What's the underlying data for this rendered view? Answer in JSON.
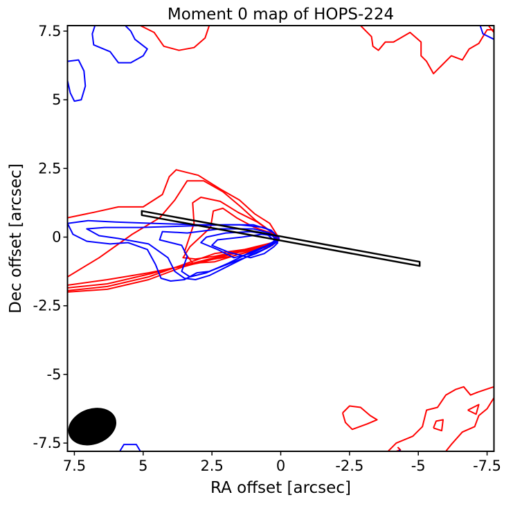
{
  "chart_data": {
    "type": "contour",
    "title": "Moment 0 map of HOPS-224",
    "xlabel": "RA offset [arcsec]",
    "ylabel": "Dec offset [arcsec]",
    "xlim": [
      7.75,
      -7.75
    ],
    "ylim": [
      -7.8,
      7.7
    ],
    "xticks": [
      {
        "value": 7.5,
        "label": "7.5"
      },
      {
        "value": 5,
        "label": "5"
      },
      {
        "value": 2.5,
        "label": "2.5"
      },
      {
        "value": 0,
        "label": "0"
      },
      {
        "value": -2.5,
        "label": "-2.5"
      },
      {
        "value": -5,
        "label": "-5"
      },
      {
        "value": -7.5,
        "label": "-7.5"
      }
    ],
    "yticks": [
      {
        "value": 7.5,
        "label": "7.5"
      },
      {
        "value": 5,
        "label": "5"
      },
      {
        "value": 2.5,
        "label": "2.5"
      },
      {
        "value": 0,
        "label": "0"
      },
      {
        "value": -2.5,
        "label": "-2.5"
      },
      {
        "value": -5,
        "label": "-5"
      },
      {
        "value": -7.5,
        "label": "-7.5"
      }
    ],
    "colors": {
      "red": "#ff0000",
      "blue": "#0000ff",
      "outline": "#000000"
    },
    "red_contours": [
      [
        [
          7.75,
          0.7
        ],
        [
          6.8,
          0.9
        ],
        [
          5.9,
          1.1
        ],
        [
          5.0,
          1.1
        ],
        [
          4.3,
          1.55
        ],
        [
          4.05,
          2.2
        ],
        [
          3.8,
          2.45
        ],
        [
          3.0,
          2.25
        ],
        [
          2.2,
          1.75
        ],
        [
          1.5,
          1.35
        ],
        [
          0.95,
          0.85
        ],
        [
          0.4,
          0.5
        ],
        [
          0.15,
          0.1
        ],
        [
          0.05,
          -0.1
        ],
        [
          0.4,
          -0.35
        ],
        [
          1.5,
          -0.55
        ],
        [
          3.0,
          -0.95
        ],
        [
          4.8,
          -1.3
        ],
        [
          6.3,
          -1.55
        ],
        [
          7.75,
          -1.75
        ]
      ],
      [
        [
          7.75,
          -1.45
        ],
        [
          6.6,
          -0.75
        ],
        [
          5.4,
          0.1
        ],
        [
          4.4,
          0.7
        ],
        [
          3.85,
          1.35
        ],
        [
          3.4,
          2.05
        ],
        [
          2.8,
          2.05
        ],
        [
          2.1,
          1.65
        ],
        [
          1.45,
          1.1
        ],
        [
          0.9,
          0.6
        ],
        [
          0.35,
          0.2
        ],
        [
          0.1,
          -0.05
        ],
        [
          0.45,
          -0.3
        ],
        [
          1.6,
          -0.55
        ],
        [
          3.0,
          -0.9
        ],
        [
          4.8,
          -1.35
        ],
        [
          6.3,
          -1.7
        ],
        [
          7.75,
          -1.85
        ]
      ],
      [
        [
          7.75,
          -1.95
        ],
        [
          6.3,
          -1.8
        ],
        [
          4.8,
          -1.45
        ],
        [
          3.4,
          -0.95
        ],
        [
          2.4,
          -0.6
        ],
        [
          1.3,
          -0.45
        ],
        [
          0.45,
          -0.3
        ],
        [
          0.15,
          -0.1
        ],
        [
          0.3,
          0.15
        ],
        [
          0.85,
          0.55
        ],
        [
          1.55,
          0.9
        ],
        [
          2.2,
          1.3
        ],
        [
          2.9,
          1.45
        ],
        [
          3.2,
          1.25
        ],
        [
          3.15,
          0.5
        ],
        [
          3.5,
          -0.55
        ],
        [
          3.2,
          -0.95
        ],
        [
          2.4,
          -0.9
        ],
        [
          1.6,
          -0.65
        ],
        [
          0.9,
          -0.45
        ]
      ],
      [
        [
          7.75,
          -2.0
        ],
        [
          6.3,
          -1.9
        ],
        [
          4.8,
          -1.55
        ],
        [
          3.6,
          -1.1
        ],
        [
          2.7,
          -0.85
        ],
        [
          1.8,
          -0.7
        ],
        [
          1.0,
          -0.5
        ],
        [
          0.3,
          -0.3
        ],
        [
          0.1,
          -0.05
        ],
        [
          0.35,
          0.15
        ],
        [
          0.95,
          0.35
        ],
        [
          1.6,
          0.7
        ],
        [
          2.1,
          1.05
        ],
        [
          2.45,
          0.95
        ],
        [
          2.55,
          0.35
        ],
        [
          3.3,
          -0.35
        ],
        [
          3.55,
          -0.75
        ],
        [
          3.1,
          -0.8
        ],
        [
          2.4,
          -0.7
        ],
        [
          1.7,
          -0.55
        ],
        [
          0.9,
          -0.35
        ],
        [
          0.3,
          -0.2
        ]
      ],
      [
        [
          5.1,
          7.7
        ],
        [
          4.6,
          7.45
        ],
        [
          4.25,
          6.95
        ],
        [
          3.7,
          6.8
        ],
        [
          3.15,
          6.9
        ],
        [
          2.75,
          7.25
        ],
        [
          2.6,
          7.7
        ]
      ],
      [
        [
          -2.9,
          7.7
        ],
        [
          -3.3,
          7.3
        ],
        [
          -3.35,
          6.95
        ],
        [
          -3.55,
          6.8
        ],
        [
          -3.8,
          7.1
        ],
        [
          -4.1,
          7.1
        ],
        [
          -4.7,
          7.45
        ],
        [
          -5.1,
          7.1
        ],
        [
          -5.1,
          6.6
        ],
        [
          -5.3,
          6.4
        ],
        [
          -5.55,
          5.95
        ],
        [
          -5.8,
          6.2
        ],
        [
          -6.2,
          6.6
        ],
        [
          -6.6,
          6.45
        ],
        [
          -6.85,
          6.85
        ],
        [
          -7.2,
          7.05
        ],
        [
          -7.5,
          7.55
        ],
        [
          -7.75,
          7.55
        ]
      ],
      [
        [
          -7.55,
          7.7
        ],
        [
          -7.75,
          7.45
        ]
      ],
      [
        [
          -3.9,
          -7.8
        ],
        [
          -4.2,
          -7.5
        ],
        [
          -4.8,
          -7.25
        ],
        [
          -5.15,
          -6.9
        ],
        [
          -5.3,
          -6.3
        ],
        [
          -5.7,
          -6.2
        ],
        [
          -6.0,
          -5.75
        ],
        [
          -6.35,
          -5.55
        ],
        [
          -6.65,
          -5.45
        ],
        [
          -6.9,
          -5.75
        ],
        [
          -7.15,
          -5.65
        ],
        [
          -7.6,
          -5.5
        ],
        [
          -7.75,
          -5.45
        ]
      ],
      [
        [
          -7.75,
          -5.85
        ],
        [
          -7.5,
          -6.25
        ],
        [
          -7.2,
          -6.5
        ],
        [
          -7.05,
          -6.9
        ],
        [
          -6.6,
          -7.1
        ],
        [
          -6.2,
          -7.55
        ],
        [
          -6.0,
          -7.8
        ]
      ],
      [
        [
          -2.25,
          -6.4
        ],
        [
          -2.5,
          -6.15
        ],
        [
          -2.9,
          -6.2
        ],
        [
          -3.25,
          -6.5
        ],
        [
          -3.5,
          -6.65
        ],
        [
          -3.15,
          -6.8
        ],
        [
          -2.6,
          -7.0
        ],
        [
          -2.35,
          -6.75
        ],
        [
          -2.25,
          -6.4
        ]
      ],
      [
        [
          -5.55,
          -6.95
        ],
        [
          -5.65,
          -6.7
        ],
        [
          -5.9,
          -6.65
        ],
        [
          -5.85,
          -7.05
        ],
        [
          -5.55,
          -6.95
        ]
      ],
      [
        [
          -6.8,
          -6.3
        ],
        [
          -7.2,
          -6.1
        ],
        [
          -7.1,
          -6.45
        ],
        [
          -6.8,
          -6.3
        ]
      ],
      [
        [
          -4.25,
          -7.65
        ],
        [
          -4.35,
          -7.75
        ],
        [
          -4.2,
          -7.8
        ]
      ]
    ],
    "blue_contours": [
      [
        [
          0.1,
          -0.15
        ],
        [
          0.25,
          0.15
        ],
        [
          0.6,
          0.35
        ],
        [
          1.5,
          0.45
        ],
        [
          3.0,
          0.45
        ],
        [
          4.6,
          0.5
        ],
        [
          6.0,
          0.55
        ],
        [
          7.0,
          0.6
        ],
        [
          7.75,
          0.5
        ],
        [
          7.55,
          0.1
        ],
        [
          7.05,
          -0.15
        ],
        [
          6.2,
          -0.25
        ],
        [
          5.55,
          -0.2
        ],
        [
          4.85,
          -0.45
        ],
        [
          4.55,
          -1.0
        ],
        [
          4.35,
          -1.5
        ],
        [
          4.0,
          -1.6
        ],
        [
          3.5,
          -1.55
        ],
        [
          3.05,
          -1.3
        ],
        [
          2.6,
          -1.25
        ],
        [
          1.7,
          -0.9
        ],
        [
          0.9,
          -0.6
        ],
        [
          0.4,
          -0.35
        ],
        [
          0.1,
          -0.15
        ]
      ],
      [
        [
          0.05,
          -0.05
        ],
        [
          0.35,
          0.25
        ],
        [
          1.0,
          0.45
        ],
        [
          2.0,
          0.45
        ],
        [
          3.5,
          0.4
        ],
        [
          5.1,
          0.35
        ],
        [
          6.4,
          0.35
        ],
        [
          7.05,
          0.3
        ],
        [
          6.6,
          0.05
        ],
        [
          5.9,
          -0.05
        ],
        [
          4.8,
          -0.25
        ],
        [
          4.1,
          -0.75
        ],
        [
          3.85,
          -1.25
        ],
        [
          3.5,
          -1.5
        ],
        [
          3.1,
          -1.55
        ],
        [
          2.6,
          -1.4
        ],
        [
          1.9,
          -1.05
        ],
        [
          1.1,
          -0.65
        ],
        [
          0.5,
          -0.4
        ],
        [
          0.05,
          -0.05
        ]
      ],
      [
        [
          0.15,
          -0.1
        ],
        [
          0.4,
          0.15
        ],
        [
          1.0,
          0.3
        ],
        [
          2.2,
          0.3
        ],
        [
          3.4,
          0.15
        ],
        [
          4.3,
          0.2
        ],
        [
          4.4,
          -0.1
        ],
        [
          3.6,
          -0.3
        ],
        [
          3.4,
          -0.7
        ],
        [
          3.6,
          -1.25
        ],
        [
          3.3,
          -1.45
        ],
        [
          2.7,
          -1.3
        ],
        [
          1.9,
          -0.95
        ],
        [
          1.1,
          -0.55
        ],
        [
          0.5,
          -0.3
        ],
        [
          0.15,
          -0.1
        ]
      ],
      [
        [
          0.2,
          -0.15
        ],
        [
          0.5,
          0.1
        ],
        [
          1.1,
          0.2
        ],
        [
          2.0,
          0.15
        ],
        [
          2.7,
          0.0
        ],
        [
          2.9,
          -0.2
        ],
        [
          2.3,
          -0.45
        ],
        [
          1.7,
          -0.75
        ],
        [
          1.1,
          -0.6
        ],
        [
          0.55,
          -0.35
        ],
        [
          0.2,
          -0.15
        ]
      ],
      [
        [
          0.1,
          -0.2
        ],
        [
          0.3,
          0.05
        ],
        [
          0.7,
          0.1
        ],
        [
          1.4,
          0.0
        ],
        [
          2.3,
          -0.1
        ],
        [
          2.5,
          -0.3
        ],
        [
          1.9,
          -0.55
        ],
        [
          1.1,
          -0.75
        ],
        [
          0.6,
          -0.6
        ],
        [
          0.25,
          -0.35
        ],
        [
          0.1,
          -0.2
        ]
      ],
      [
        [
          7.75,
          6.4
        ],
        [
          7.35,
          6.45
        ],
        [
          7.15,
          6.05
        ],
        [
          7.1,
          5.5
        ],
        [
          7.25,
          5.0
        ],
        [
          7.5,
          4.95
        ],
        [
          7.65,
          5.25
        ],
        [
          7.75,
          5.7
        ]
      ],
      [
        [
          6.75,
          7.7
        ],
        [
          6.85,
          7.4
        ],
        [
          6.8,
          7.0
        ],
        [
          6.2,
          6.75
        ],
        [
          5.9,
          6.35
        ],
        [
          5.45,
          6.35
        ],
        [
          5.0,
          6.6
        ],
        [
          4.85,
          6.85
        ],
        [
          5.3,
          7.2
        ],
        [
          5.45,
          7.5
        ],
        [
          5.65,
          7.7
        ]
      ],
      [
        [
          -7.75,
          7.2
        ],
        [
          -7.35,
          7.4
        ],
        [
          -7.25,
          7.7
        ]
      ],
      [
        [
          5.85,
          -7.8
        ],
        [
          5.7,
          -7.55
        ],
        [
          5.25,
          -7.55
        ],
        [
          5.1,
          -7.8
        ]
      ],
      [
        [
          -4.3,
          -7.75
        ],
        [
          -4.35,
          -7.8
        ]
      ]
    ],
    "slit_outline": [
      [
        5.05,
        0.95
      ],
      [
        -5.05,
        -0.9
      ],
      [
        -5.05,
        -1.05
      ],
      [
        5.05,
        0.8
      ],
      [
        5.05,
        0.95
      ]
    ],
    "beam": {
      "ra": 6.85,
      "dec": -6.9,
      "major": 0.9,
      "minor": 0.65,
      "angle": -20
    }
  }
}
